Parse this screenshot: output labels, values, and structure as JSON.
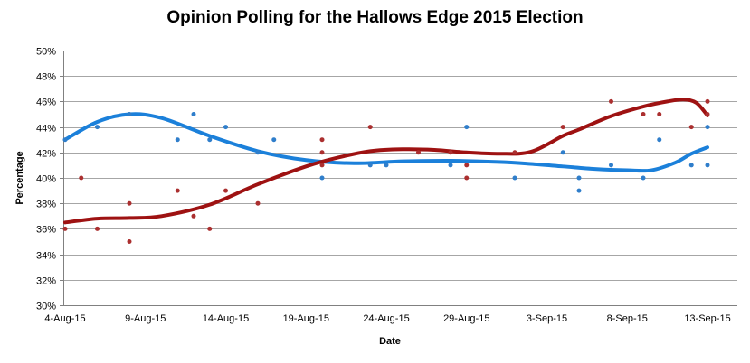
{
  "chart_data": {
    "type": "scatter",
    "title": "Opinion Polling for the Hallows Edge 2015 Election",
    "xlabel": "Date",
    "ylabel": "Percentage",
    "ylim": [
      30,
      50
    ],
    "y_ticks": [
      [
        30,
        "30%"
      ],
      [
        32,
        "32%"
      ],
      [
        34,
        "34%"
      ],
      [
        36,
        "36%"
      ],
      [
        38,
        "38%"
      ],
      [
        40,
        "40%"
      ],
      [
        42,
        "42%"
      ],
      [
        44,
        "44%"
      ],
      [
        46,
        "46%"
      ],
      [
        48,
        "48%"
      ],
      [
        50,
        "50%"
      ]
    ],
    "x_ticks": [
      [
        0,
        "4-Aug-15"
      ],
      [
        5,
        "9-Aug-15"
      ],
      [
        10,
        "14-Aug-15"
      ],
      [
        15,
        "19-Aug-15"
      ],
      [
        20,
        "24-Aug-15"
      ],
      [
        25,
        "29-Aug-15"
      ],
      [
        30,
        "3-Sep-15"
      ],
      [
        35,
        "8-Sep-15"
      ],
      [
        40,
        "13-Sep-15"
      ]
    ],
    "x_unit_days_from": "4-Aug-15",
    "grid": true,
    "legend": "none",
    "series": [
      {
        "name": "blue-series",
        "line_color": "#1B80DA",
        "dot_color": "#2F7ECB",
        "points": [
          [
            0,
            43
          ],
          [
            2,
            44
          ],
          [
            4,
            45
          ],
          [
            7,
            43
          ],
          [
            8,
            45
          ],
          [
            9,
            43
          ],
          [
            10,
            44
          ],
          [
            12,
            42
          ],
          [
            13,
            43
          ],
          [
            16,
            40
          ],
          [
            19,
            41
          ],
          [
            20,
            41
          ],
          [
            24,
            41
          ],
          [
            25,
            44
          ],
          [
            28,
            40
          ],
          [
            31,
            42
          ],
          [
            32,
            40
          ],
          [
            32,
            39
          ],
          [
            34,
            41
          ],
          [
            36,
            40
          ],
          [
            37,
            43
          ],
          [
            39,
            41
          ],
          [
            40,
            44
          ],
          [
            40,
            41
          ]
        ],
        "trend": [
          [
            0,
            43.0
          ],
          [
            2,
            44.4
          ],
          [
            4,
            45.0
          ],
          [
            6,
            44.7
          ],
          [
            9,
            43.3
          ],
          [
            12,
            42.1
          ],
          [
            15,
            41.4
          ],
          [
            18,
            41.15
          ],
          [
            21,
            41.3
          ],
          [
            24,
            41.35
          ],
          [
            27,
            41.25
          ],
          [
            29,
            41.1
          ],
          [
            31,
            40.9
          ],
          [
            33,
            40.7
          ],
          [
            35,
            40.6
          ],
          [
            36.5,
            40.6
          ],
          [
            38,
            41.2
          ],
          [
            39,
            41.9
          ],
          [
            40,
            42.4
          ]
        ]
      },
      {
        "name": "dark-red-series",
        "line_color": "#9E1212",
        "dot_color": "#AB2F2F",
        "points": [
          [
            0,
            36
          ],
          [
            1,
            40
          ],
          [
            2,
            36
          ],
          [
            4,
            38
          ],
          [
            4,
            35
          ],
          [
            7,
            39
          ],
          [
            8,
            37
          ],
          [
            9,
            36
          ],
          [
            10,
            39
          ],
          [
            12,
            38
          ],
          [
            16,
            43
          ],
          [
            16,
            42
          ],
          [
            16,
            41
          ],
          [
            19,
            44
          ],
          [
            22,
            42
          ],
          [
            24,
            42
          ],
          [
            25,
            41
          ],
          [
            25,
            40
          ],
          [
            28,
            42
          ],
          [
            31,
            44
          ],
          [
            34,
            46
          ],
          [
            36,
            45
          ],
          [
            37,
            45
          ],
          [
            39,
            44
          ],
          [
            40,
            46
          ],
          [
            40,
            45
          ]
        ],
        "trend": [
          [
            0,
            36.5
          ],
          [
            2,
            36.8
          ],
          [
            4,
            36.85
          ],
          [
            6,
            37.0
          ],
          [
            9,
            37.9
          ],
          [
            12,
            39.5
          ],
          [
            15,
            40.9
          ],
          [
            17,
            41.6
          ],
          [
            19,
            42.1
          ],
          [
            21,
            42.25
          ],
          [
            23,
            42.2
          ],
          [
            25,
            42.0
          ],
          [
            27,
            41.9
          ],
          [
            29,
            42.05
          ],
          [
            31,
            43.3
          ],
          [
            32,
            43.8
          ],
          [
            34,
            44.85
          ],
          [
            36,
            45.6
          ],
          [
            37.5,
            46.0
          ],
          [
            38.5,
            46.15
          ],
          [
            39.3,
            45.9
          ],
          [
            40,
            44.9
          ]
        ]
      }
    ],
    "colors": {
      "gridline": "#A6A6A6",
      "axis": "#808080",
      "text": "#000000",
      "background": "#FFFFFF"
    }
  }
}
